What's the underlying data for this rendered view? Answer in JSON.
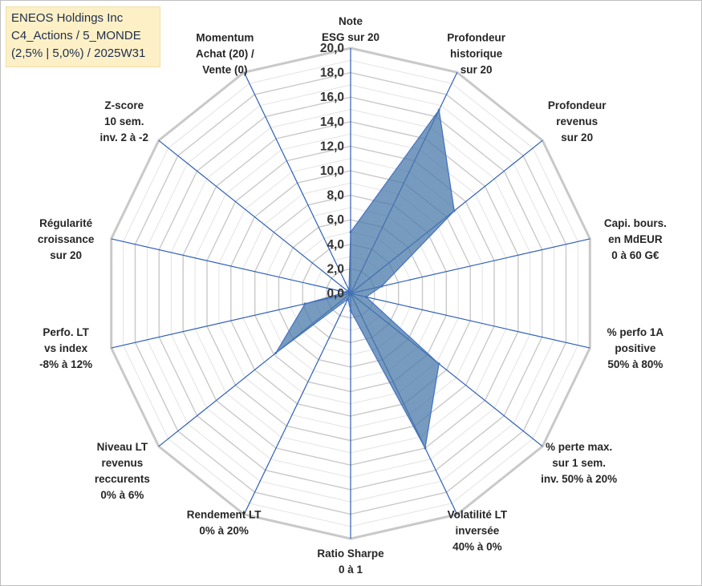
{
  "title": {
    "lines": [
      "ENEOS Holdings Inc",
      "C4_Actions / 5_MONDE",
      "(2,5% | 5,0%) / 2025W31"
    ]
  },
  "chart_data": {
    "type": "radar",
    "ylim": [
      0,
      20
    ],
    "ticks": [
      "0,0",
      "2,0",
      "4,0",
      "6,0",
      "8,0",
      "10,0",
      "12,0",
      "14,0",
      "16,0",
      "18,0",
      "20,0"
    ],
    "categories": [
      "Note ESG sur 20",
      "Profondeur historique sur 20",
      "Profondeur revenus sur 20",
      "Capi. bours. en MdEUR 0 à 60 G€",
      "% perfo 1A positive 50% à 80%",
      "% perte max. sur 1 sem. inv. 50% à 20%",
      "Volatilité LT inversée 40% à 0%",
      "Ratio Sharpe 0 à 1",
      "Rendement LT 0% à 20%",
      "Niveau LT revenus reccurents 0% à 6%",
      "Perfo. LT vs index -8% à 12%",
      "Régularité croissance sur 20",
      "Z-score 10 sem. inv. 2 à -2",
      "Momentum Achat (20) / Vente (0)"
    ],
    "category_lines": [
      [
        "Note",
        "ESG sur 20"
      ],
      [
        "Profondeur",
        "historique",
        "sur 20"
      ],
      [
        "Profondeur",
        "revenus",
        "sur 20"
      ],
      [
        "Capi. bours.",
        "en MdEUR",
        "0 à 60 G€"
      ],
      [
        "% perfo 1A",
        "positive",
        "50% à 80%"
      ],
      [
        "% perte max.",
        "sur 1 sem.",
        "inv. 50% à 20%"
      ],
      [
        "Volatilité LT",
        "inversée",
        "40% à 0%"
      ],
      [
        "Ratio Sharpe",
        "0 à 1"
      ],
      [
        "Rendement LT",
        "0% à 20%"
      ],
      [
        "Niveau LT",
        "revenus",
        "reccurents",
        "0% à 6%"
      ],
      [
        "Perfo. LT",
        "vs index",
        "-8% à 12%"
      ],
      [
        "Régularité",
        "croissance",
        "sur 20"
      ],
      [
        "Z-score",
        "10 sem.",
        "inv. 2 à -2"
      ],
      [
        "Momentum",
        "Achat (20) /",
        "Vente (0)"
      ]
    ],
    "series": [
      {
        "values": [
          5.0,
          16.6,
          10.8,
          2.6,
          1.3,
          9.2,
          14.0,
          1.4,
          0.5,
          7.8,
          3.8,
          0.4,
          0.3,
          0.3
        ]
      }
    ],
    "colors": {
      "fill": "#4a78aa",
      "stroke": "#4472c4",
      "grid": "#d0d0d0",
      "axis": "#2f5fb8"
    },
    "grid": true,
    "legend": "none"
  }
}
